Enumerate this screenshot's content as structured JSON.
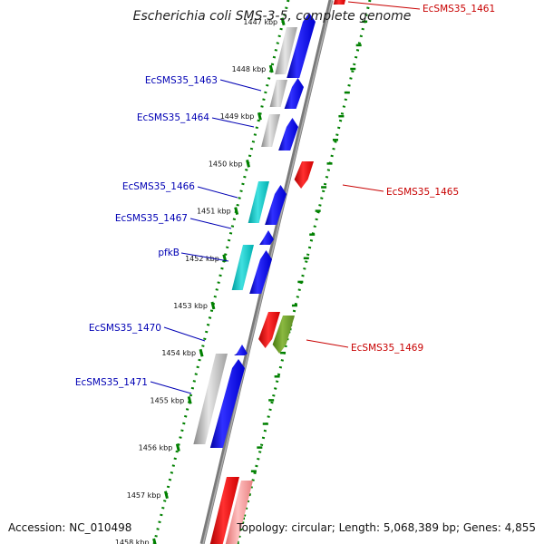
{
  "title": "Escherichia coli SMS-3-5, complete genome",
  "footer": {
    "accession": "Accession: NC_010498",
    "summary": "Topology: circular; Length: 5,068,389 bp; Genes: 4,855"
  },
  "colors": {
    "left_label": "#0000b4",
    "right_label": "#c80000",
    "backbone": "#808080",
    "tick_dots": "#008000"
  },
  "kbp_ticks": [
    {
      "label": "1447 kbp",
      "kbp": 1447
    },
    {
      "label": "1448 kbp",
      "kbp": 1448
    },
    {
      "label": "1449 kbp",
      "kbp": 1449
    },
    {
      "label": "1450 kbp",
      "kbp": 1450
    },
    {
      "label": "1451 kbp",
      "kbp": 1451
    },
    {
      "label": "1452 kbp",
      "kbp": 1452
    },
    {
      "label": "1453 kbp",
      "kbp": 1453
    },
    {
      "label": "1454 kbp",
      "kbp": 1454
    },
    {
      "label": "1455 kbp",
      "kbp": 1455
    },
    {
      "label": "1456 kbp",
      "kbp": 1456
    },
    {
      "label": "1457 kbp",
      "kbp": 1457
    },
    {
      "label": "1458 kbp",
      "kbp": 1458
    }
  ],
  "gene_labels_left": [
    {
      "name": "EcSMS35_1463"
    },
    {
      "name": "EcSMS35_1464"
    },
    {
      "name": "EcSMS35_1466"
    },
    {
      "name": "EcSMS35_1467"
    },
    {
      "name": "pfkB"
    },
    {
      "name": "EcSMS35_1470"
    },
    {
      "name": "EcSMS35_1471"
    }
  ],
  "gene_labels_right": [
    {
      "name": "EcSMS35_1461"
    },
    {
      "name": "EcSMS35_1465"
    },
    {
      "name": "EcSMS35_1469"
    }
  ]
}
